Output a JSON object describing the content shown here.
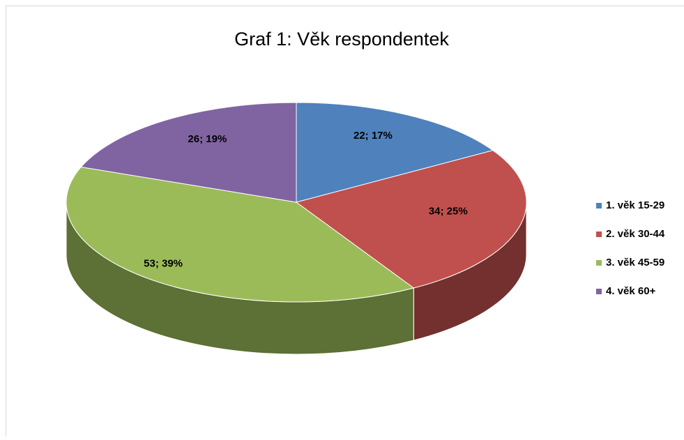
{
  "chart_data": {
    "type": "pie",
    "title": "Graf 1: Věk respondentek",
    "categories": [
      "1. věk 15-29",
      "2. věk 30-44",
      "3. věk 45-59",
      "4. věk 60+"
    ],
    "values": [
      22,
      34,
      53,
      26
    ],
    "value_labels": [
      "22; 17%",
      "34; 25%",
      "53; 39%",
      "26; 19%"
    ],
    "colors": [
      "#4f81bd",
      "#c0504d",
      "#9bbb59",
      "#8064a2"
    ],
    "legend": "right"
  }
}
